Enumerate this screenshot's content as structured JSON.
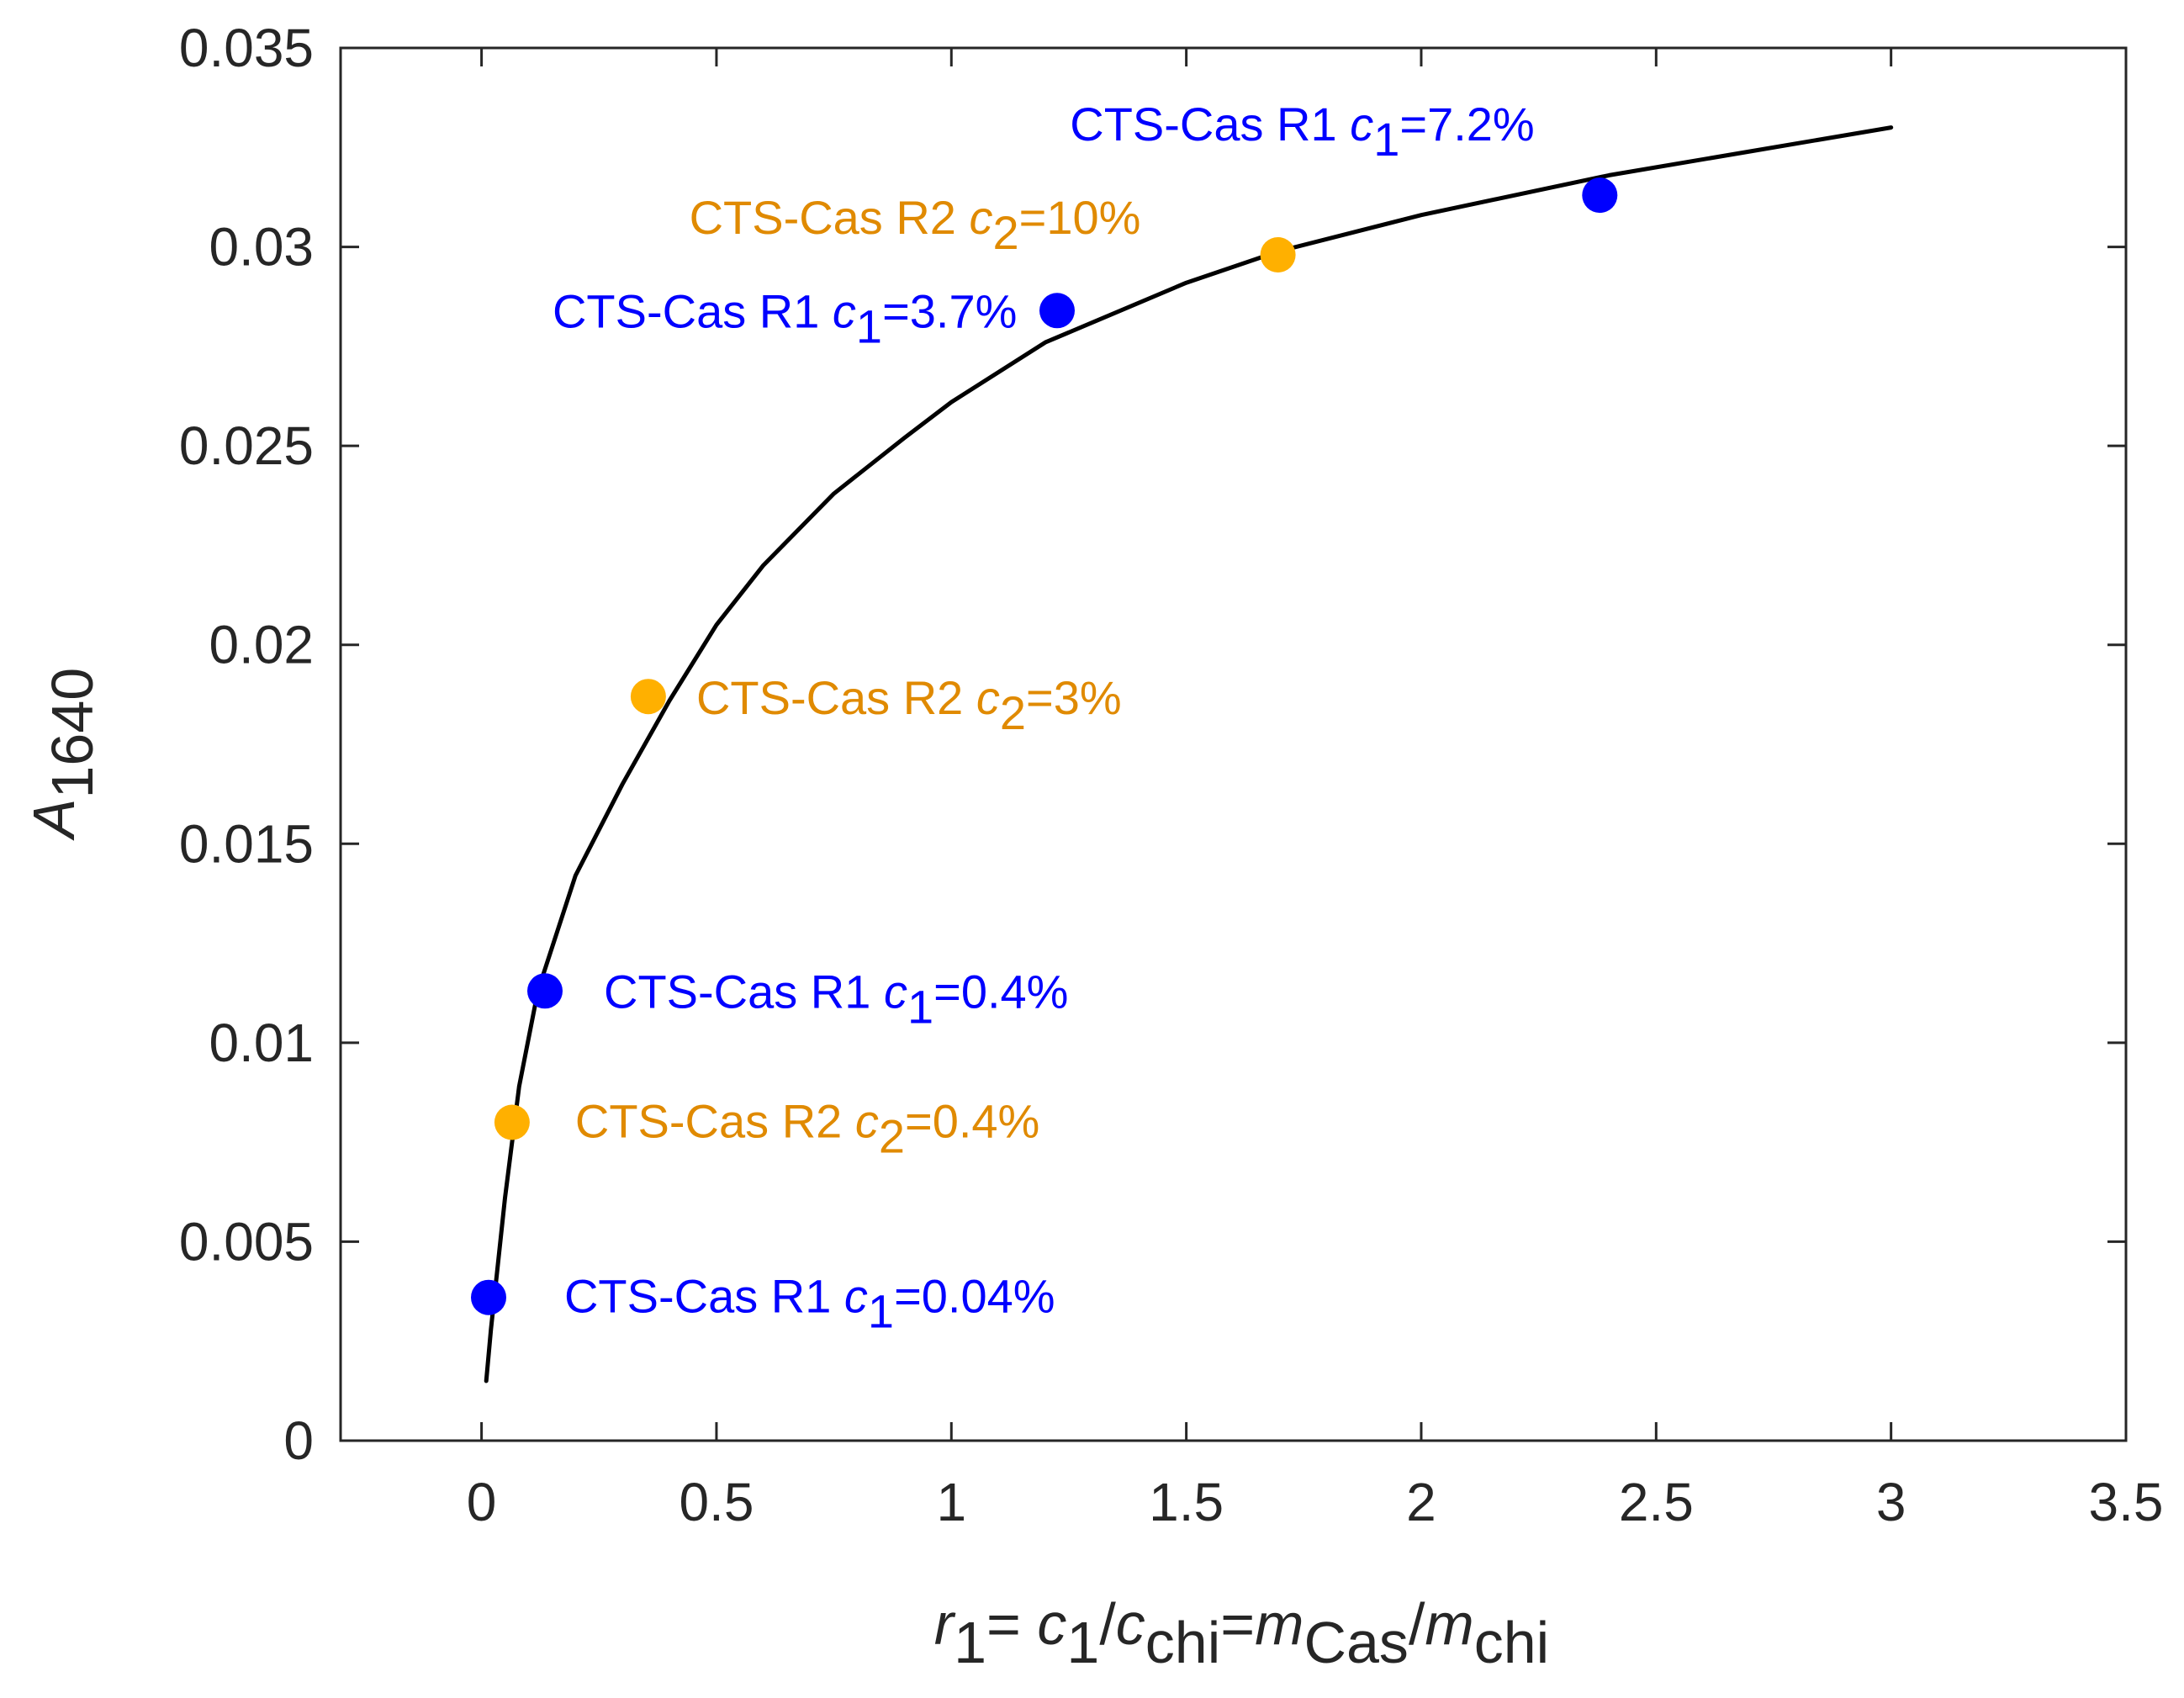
{
  "chart_data": {
    "type": "scatter",
    "title": "",
    "xlabel": {
      "parts": [
        {
          "t": "r",
          "italic": true
        },
        {
          "t": "1",
          "sub": true
        },
        {
          "t": "= "
        },
        {
          "t": "c",
          "italic": true
        },
        {
          "t": "1",
          "sub": true
        },
        {
          "t": "/"
        },
        {
          "t": "c",
          "italic": true
        },
        {
          "t": "chi",
          "sub": true
        },
        {
          "t": "="
        },
        {
          "t": "m",
          "italic": true
        },
        {
          "t": "Cas",
          "sub": true
        },
        {
          "t": "/"
        },
        {
          "t": "m",
          "italic": true
        },
        {
          "t": "chi",
          "sub": true
        }
      ]
    },
    "ylabel": {
      "parts": [
        {
          "t": "A",
          "italic": true
        },
        {
          "t": "1640",
          "sub": true
        }
      ]
    },
    "xlim": [
      -0.3,
      3.5
    ],
    "ylim": [
      0,
      0.035
    ],
    "xticks": [
      0,
      0.5,
      1,
      1.5,
      2,
      2.5,
      3,
      3.5
    ],
    "xtick_labels": [
      "0",
      "0.5",
      "1",
      "1.5",
      "2",
      "2.5",
      "3",
      "3.5"
    ],
    "yticks": [
      0,
      0.005,
      0.01,
      0.015,
      0.02,
      0.025,
      0.03,
      0.035
    ],
    "ytick_labels": [
      "0",
      "0.005",
      "0.01",
      "0.015",
      "0.02",
      "0.025",
      "0.03",
      "0.035"
    ],
    "grid": false,
    "colors": {
      "R1": "#0000ff",
      "R2_marker": "#ffb000",
      "R2_text": "#e08a00",
      "fit": "#000000",
      "axis": "#262626"
    },
    "series": [
      {
        "name": "CTS-Cas R1",
        "color_key": "R1",
        "points": [
          {
            "x": 0.015,
            "y": 0.0036,
            "label": {
              "parts": [
                {
                  "t": "CTS-Cas R1 "
                },
                {
                  "t": "c",
                  "italic": true
                },
                {
                  "t": "1",
                  "sub": true
                },
                {
                  "t": "=0.04%"
                }
              ]
            }
          },
          {
            "x": 0.135,
            "y": 0.0113,
            "label": {
              "parts": [
                {
                  "t": "CTS-Cas R1 "
                },
                {
                  "t": "c",
                  "italic": true
                },
                {
                  "t": "1",
                  "sub": true
                },
                {
                  "t": "=0.4%"
                }
              ]
            }
          },
          {
            "x": 1.225,
            "y": 0.0284,
            "label": {
              "parts": [
                {
                  "t": "CTS-Cas R1 "
                },
                {
                  "t": "c",
                  "italic": true
                },
                {
                  "t": "1",
                  "sub": true
                },
                {
                  "t": "=3.7%"
                }
              ]
            }
          },
          {
            "x": 2.38,
            "y": 0.0313,
            "label": {
              "parts": [
                {
                  "t": "CTS-Cas R1 "
                },
                {
                  "t": "c",
                  "italic": true
                },
                {
                  "t": "1",
                  "sub": true
                },
                {
                  "t": "=7.2%"
                }
              ]
            }
          }
        ]
      },
      {
        "name": "CTS-Cas R2",
        "color_key": "R2_marker",
        "text_color_key": "R2_text",
        "points": [
          {
            "x": 0.065,
            "y": 0.008,
            "label": {
              "parts": [
                {
                  "t": "CTS-Cas R2 "
                },
                {
                  "t": "c",
                  "italic": true
                },
                {
                  "t": "2",
                  "sub": true
                },
                {
                  "t": "=0.4%"
                }
              ]
            }
          },
          {
            "x": 0.355,
            "y": 0.0187,
            "label": {
              "parts": [
                {
                  "t": "CTS-Cas R2 "
                },
                {
                  "t": "c",
                  "italic": true
                },
                {
                  "t": "2",
                  "sub": true
                },
                {
                  "t": "=3%"
                }
              ]
            }
          },
          {
            "x": 1.695,
            "y": 0.0298,
            "label": {
              "parts": [
                {
                  "t": "CTS-Cas R2 "
                },
                {
                  "t": "c",
                  "italic": true
                },
                {
                  "t": "2",
                  "sub": true
                },
                {
                  "t": "=10%"
                }
              ]
            }
          }
        ]
      }
    ],
    "fit_curve": {
      "name": "fit",
      "points": [
        [
          0.01,
          0.0015
        ],
        [
          0.02,
          0.0028
        ],
        [
          0.05,
          0.0061
        ],
        [
          0.08,
          0.0089
        ],
        [
          0.12,
          0.0113
        ],
        [
          0.2,
          0.0142
        ],
        [
          0.3,
          0.0165
        ],
        [
          0.4,
          0.0186
        ],
        [
          0.5,
          0.0205
        ],
        [
          0.6,
          0.022
        ],
        [
          0.75,
          0.0238
        ],
        [
          0.9,
          0.0252
        ],
        [
          1.0,
          0.0261
        ],
        [
          1.2,
          0.0276
        ],
        [
          1.5,
          0.0291
        ],
        [
          1.7,
          0.0299
        ],
        [
          2.0,
          0.0308
        ],
        [
          2.4,
          0.0318
        ],
        [
          2.7,
          0.0324
        ],
        [
          3.0,
          0.033
        ]
      ]
    }
  }
}
